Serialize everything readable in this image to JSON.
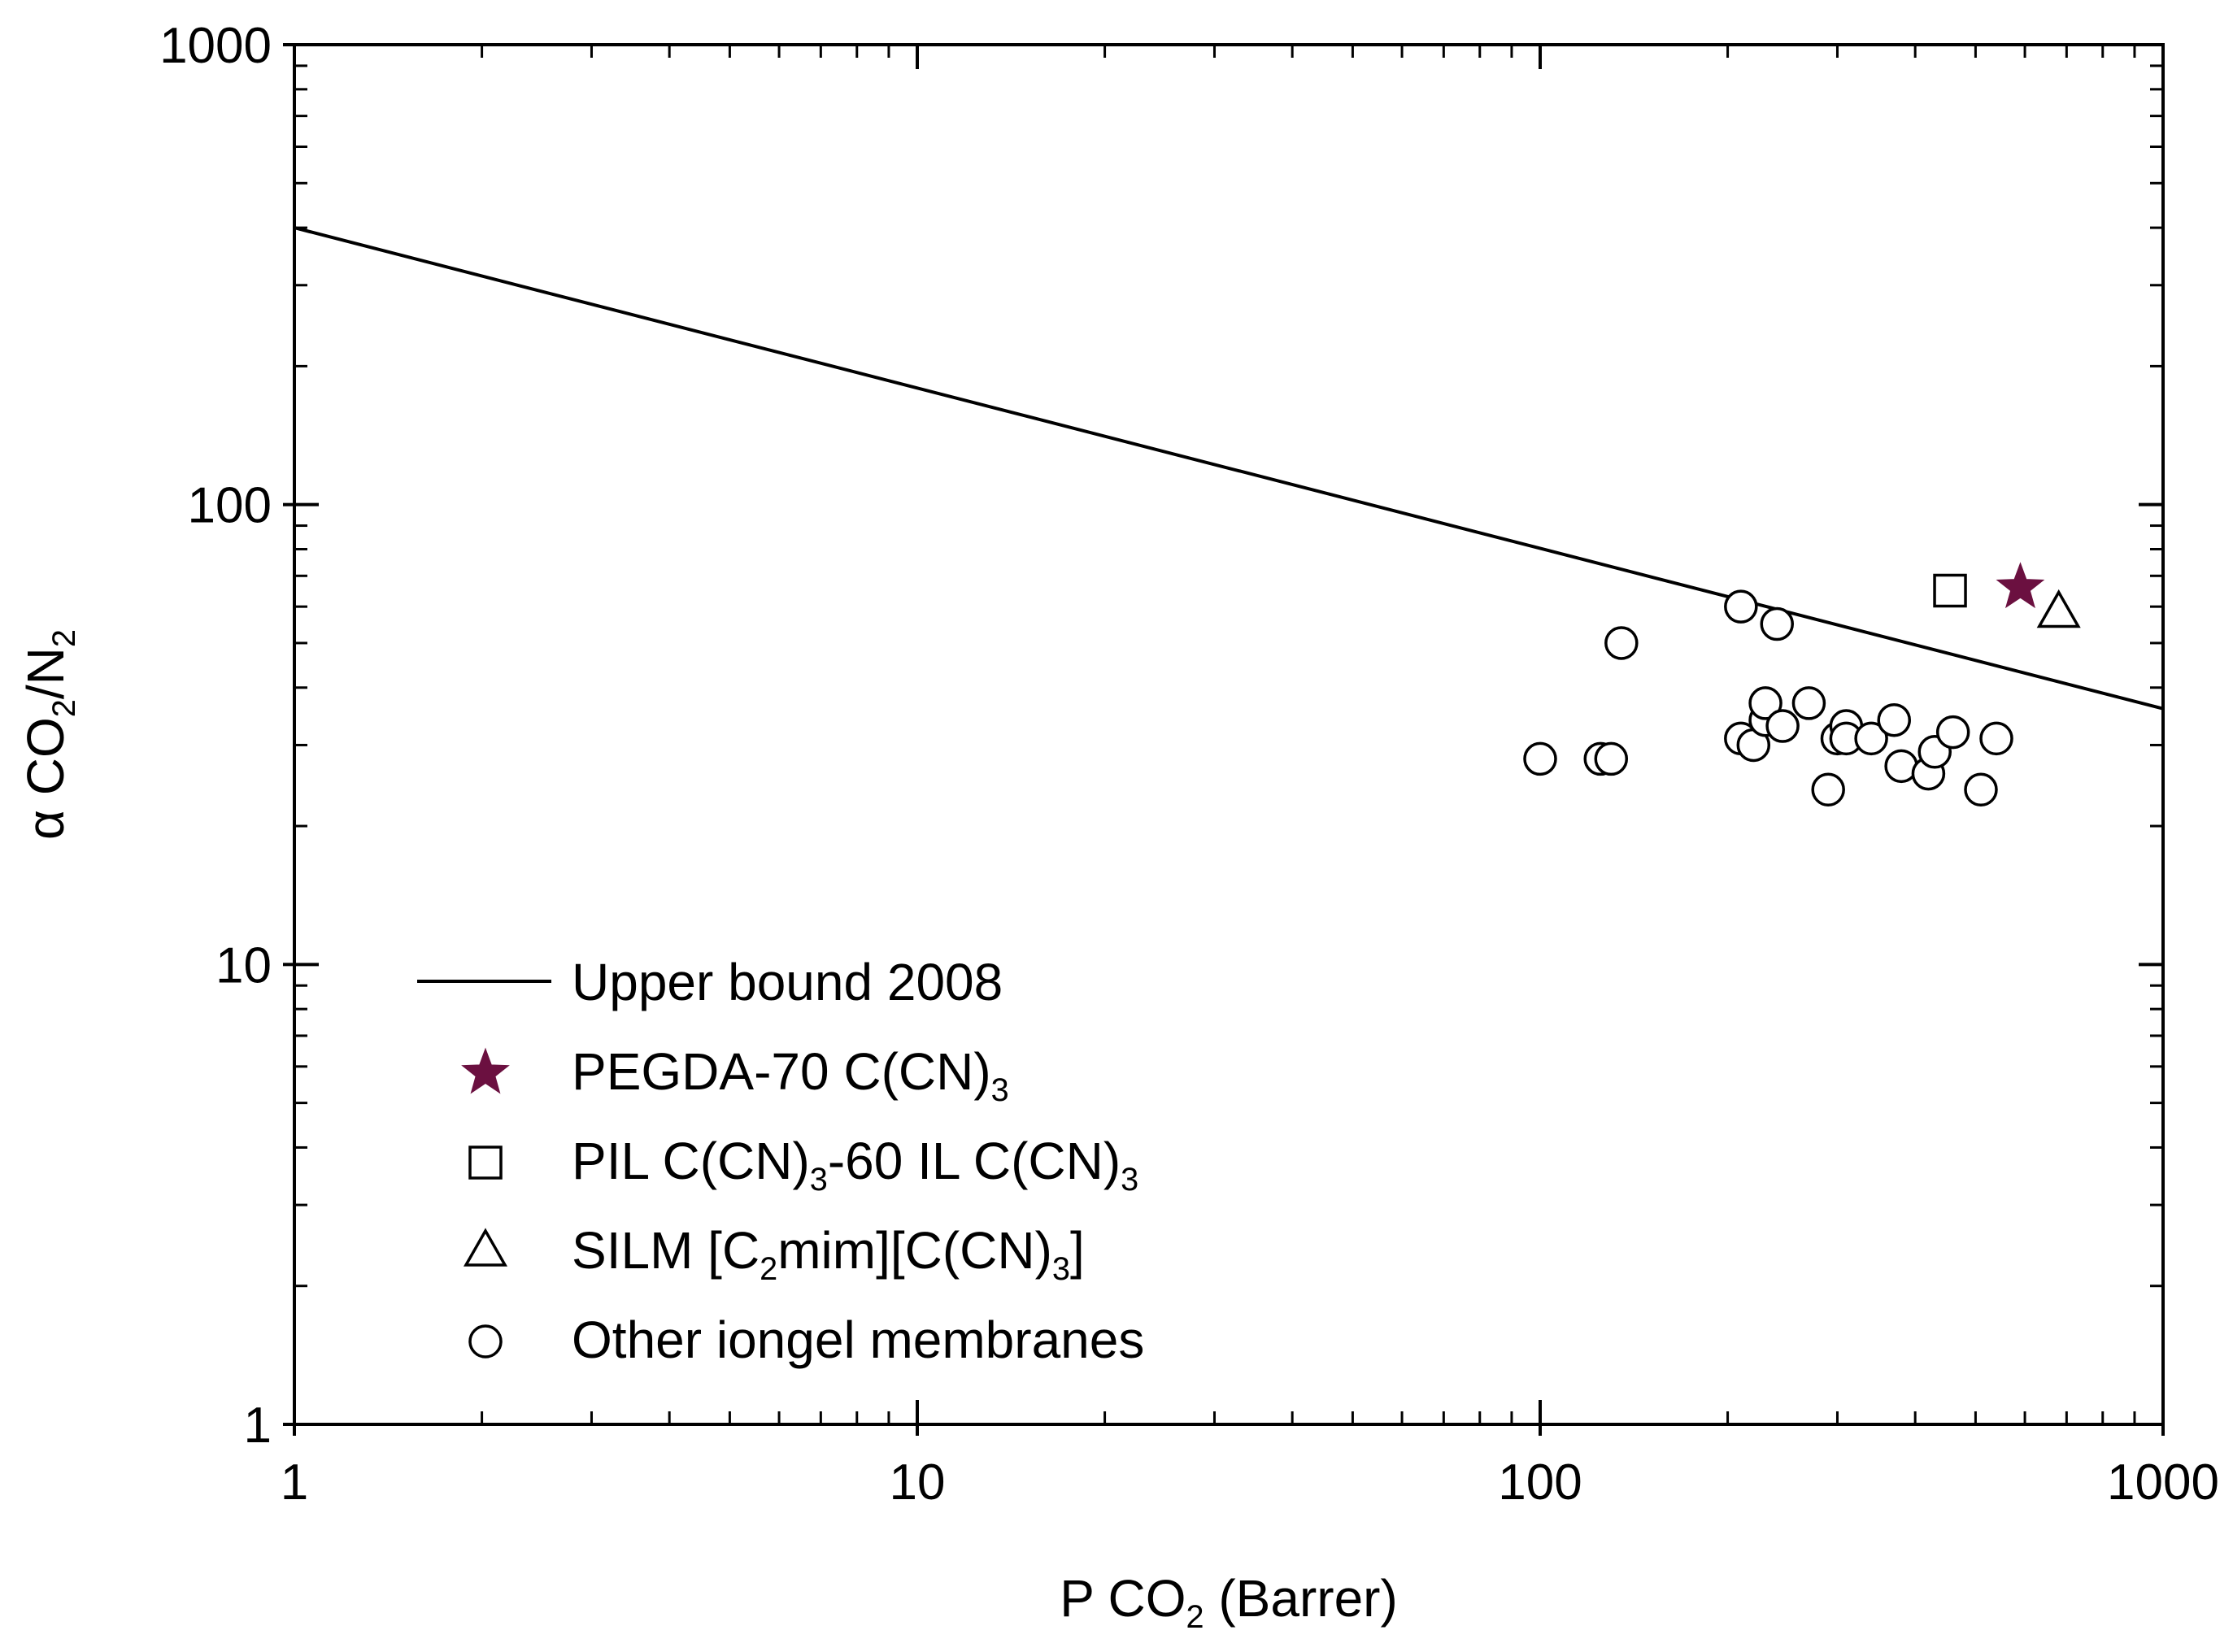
{
  "chart_data": {
    "type": "scatter",
    "title": "",
    "xlabel": {
      "main": "P CO",
      "sub": "2",
      "rest": " (Barrer)"
    },
    "ylabel": {
      "prefix": "α CO",
      "sub1": "2",
      "mid": "/N",
      "sub2": "2"
    },
    "xscale": "log",
    "yscale": "log",
    "xlim": [
      1,
      1000
    ],
    "ylim": [
      1,
      1000
    ],
    "x_ticks": [
      1,
      10,
      100,
      1000
    ],
    "x_tick_labels": [
      "1",
      "10",
      "100",
      "1000"
    ],
    "y_ticks": [
      1,
      10,
      100,
      1000
    ],
    "y_tick_labels": [
      "1",
      "10",
      "100",
      "1000"
    ],
    "grid": false,
    "legend_position": "bottom-left",
    "series": [
      {
        "name": "Upper bound 2008",
        "kind": "line",
        "color": "#000000",
        "label_parts": [
          {
            "t": "Upper bound 2008"
          }
        ],
        "x": [
          1,
          1000
        ],
        "y": [
          400,
          36
        ]
      },
      {
        "name": "PEGDA-70 C(CN)3",
        "kind": "marker",
        "marker": "star",
        "color": "#6b1040",
        "label_parts": [
          {
            "t": "PEGDA-70 C(CN)"
          },
          {
            "t": "3",
            "sub": true
          }
        ],
        "x": [
          590
        ],
        "y": [
          66
        ]
      },
      {
        "name": "PIL C(CN)3-60 IL C(CN)3",
        "kind": "marker",
        "marker": "square",
        "color": "#000000",
        "label_parts": [
          {
            "t": "PIL C(CN)"
          },
          {
            "t": "3",
            "sub": true
          },
          {
            "t": "-60 IL C(CN)"
          },
          {
            "t": "3",
            "sub": true
          }
        ],
        "x": [
          455
        ],
        "y": [
          65
        ]
      },
      {
        "name": "SILM [C2mim][C(CN)3]",
        "kind": "marker",
        "marker": "triangle",
        "color": "#000000",
        "label_parts": [
          {
            "t": "SILM [C"
          },
          {
            "t": "2",
            "sub": true
          },
          {
            "t": "mim][C(CN)"
          },
          {
            "t": "3",
            "sub": true
          },
          {
            "t": "]"
          }
        ],
        "x": [
          680
        ],
        "y": [
          58
        ]
      },
      {
        "name": "Other iongel membranes",
        "kind": "marker",
        "marker": "circle",
        "color": "#000000",
        "label_parts": [
          {
            "t": "Other iongel membranes"
          }
        ],
        "x": [
          100,
          125,
          130,
          135,
          210,
          240,
          210,
          220,
          230,
          230,
          245,
          270,
          290,
          300,
          310,
          310,
          340,
          370,
          380,
          420,
          430,
          460,
          510,
          540
        ],
        "y": [
          28,
          28,
          28,
          50,
          60,
          55,
          31,
          30,
          34,
          37,
          33,
          37,
          24,
          31,
          33,
          31,
          31,
          34,
          27,
          26,
          29,
          32,
          24,
          31
        ]
      }
    ]
  }
}
